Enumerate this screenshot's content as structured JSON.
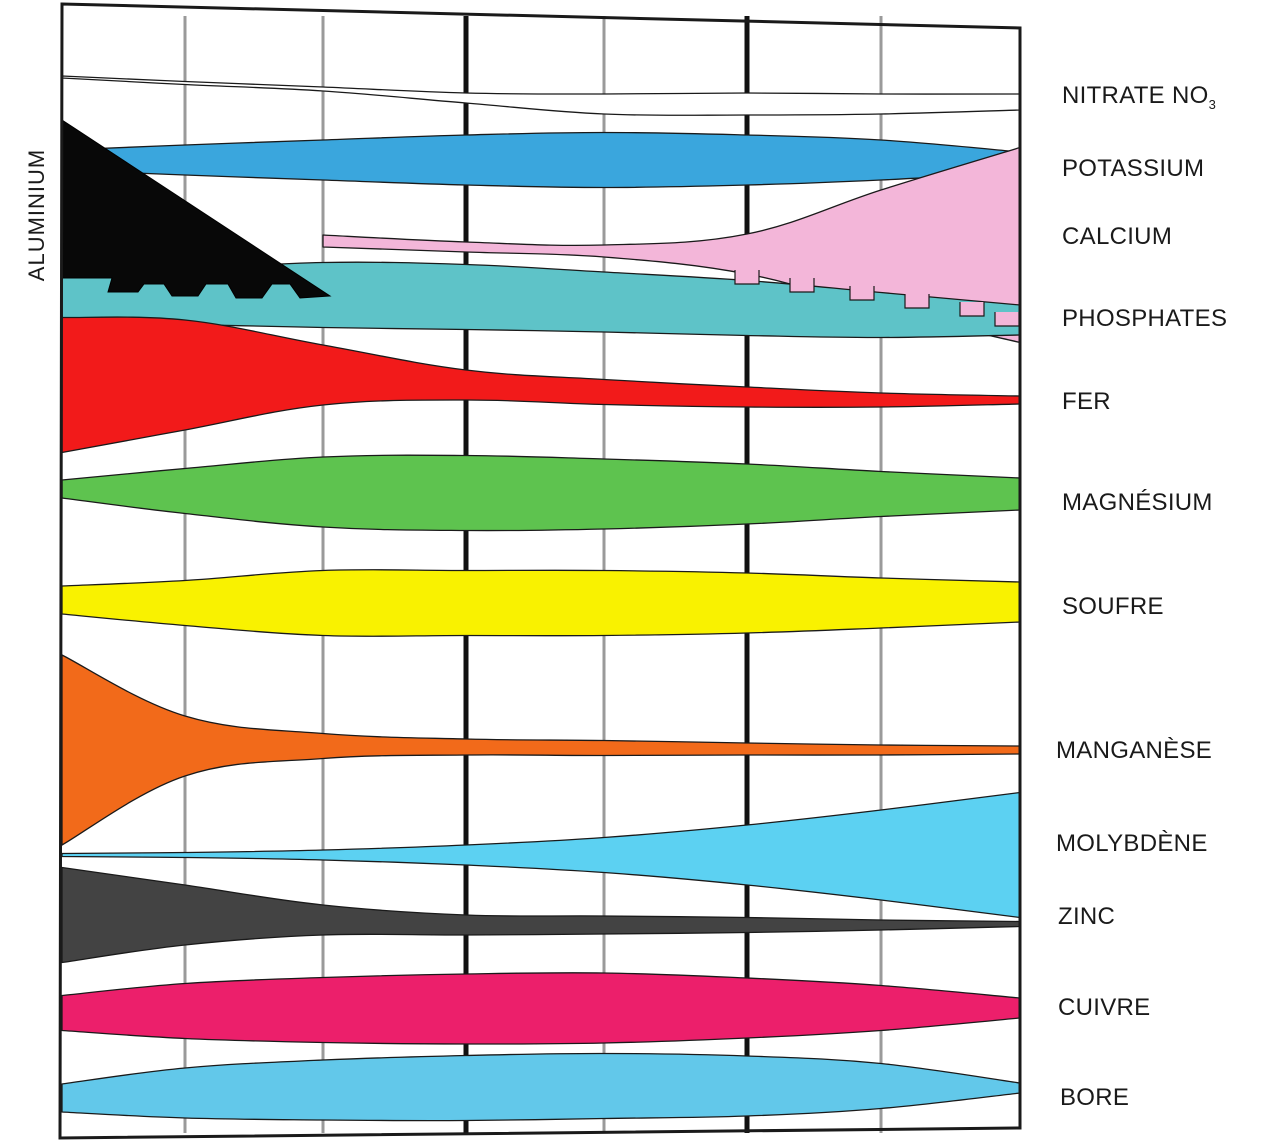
{
  "chart_data": {
    "type": "area",
    "title": "",
    "xlabel": "",
    "ylabel": "ALUMINIUM",
    "grid": true,
    "x": [
      0,
      1,
      2,
      3,
      4,
      5,
      6,
      7
    ],
    "series": [
      {
        "name": "NITRATE NO",
        "subscript": "3",
        "color": "#ffffff",
        "y_center": [
          77,
          83,
          89,
          98,
          104,
          104,
          104,
          102
        ],
        "width": [
          2,
          3,
          4,
          10,
          20,
          22,
          20,
          16
        ]
      },
      {
        "name": "POTASSIUM",
        "color": "#3aa6dd",
        "y_center": [
          160,
          160,
          160,
          160,
          160,
          160,
          160,
          162
        ],
        "width": [
          20,
          30,
          40,
          50,
          55,
          50,
          40,
          20
        ]
      },
      {
        "name": "CALCIUM",
        "color": "#f3b6d9",
        "y_center": [
          0,
          0,
          241,
          247,
          251,
          254,
          250,
          245
        ],
        "width": [
          0,
          0,
          12,
          10,
          12,
          40,
          120,
          195
        ]
      },
      {
        "name": "PHOSPHATES",
        "color": "#5ec3c8",
        "y_center": [
          300,
          297,
          295,
          297,
          302,
          308,
          315,
          320
        ],
        "width": [
          45,
          55,
          65,
          65,
          60,
          55,
          45,
          30
        ]
      },
      {
        "name": "FER",
        "color": "#f21a1a",
        "y_center": [
          385,
          375,
          375,
          385,
          392,
          397,
          400,
          400
        ],
        "width": [
          135,
          110,
          60,
          30,
          25,
          20,
          14,
          8
        ]
      },
      {
        "name": "MAGNÉSIUM",
        "color": "#5ec34f",
        "y_center": [
          489,
          491,
          492,
          493,
          494,
          494,
          494,
          494
        ],
        "width": [
          18,
          45,
          70,
          75,
          70,
          60,
          45,
          32
        ]
      },
      {
        "name": "SOUFRE",
        "color": "#f9f200",
        "y_center": [
          600,
          603,
          603,
          603,
          603,
          603,
          603,
          602
        ],
        "width": [
          28,
          45,
          65,
          65,
          65,
          60,
          50,
          40
        ]
      },
      {
        "name": "MANGANÈSE",
        "color": "#f26a1a",
        "y_center": [
          750,
          746,
          746,
          747,
          748,
          749,
          750,
          750
        ],
        "width": [
          190,
          60,
          25,
          16,
          15,
          12,
          10,
          8
        ]
      },
      {
        "name": "MOLYBDÈNE",
        "color": "#5cd1f2",
        "y_center": [
          855,
          855,
          855,
          855,
          855,
          855,
          855,
          855
        ],
        "width": [
          3,
          5,
          10,
          20,
          35,
          60,
          90,
          125
        ]
      },
      {
        "name": "ZINC",
        "color": "#434343",
        "y_center": [
          915,
          915,
          920,
          925,
          925,
          925,
          925,
          924
        ],
        "width": [
          95,
          60,
          30,
          20,
          18,
          15,
          10,
          5
        ]
      },
      {
        "name": "CUIVRE",
        "color": "#ec1f6b",
        "y_center": [
          1013,
          1011,
          1010,
          1009,
          1008,
          1008,
          1008,
          1008
        ],
        "width": [
          35,
          55,
          65,
          70,
          70,
          60,
          45,
          20
        ]
      },
      {
        "name": "BORE",
        "color": "#62c8ea",
        "y_center": [
          1098,
          1093,
          1090,
          1088,
          1086,
          1086,
          1086,
          1088
        ],
        "width": [
          28,
          50,
          60,
          65,
          65,
          60,
          45,
          10
        ]
      }
    ],
    "aluminium": {
      "name": "ALUMINIUM",
      "color": "#080808"
    },
    "label_colors": {
      "text": "#1a1a1a",
      "frame": "#1a1a1a",
      "grid": "#8a8a8a"
    }
  }
}
